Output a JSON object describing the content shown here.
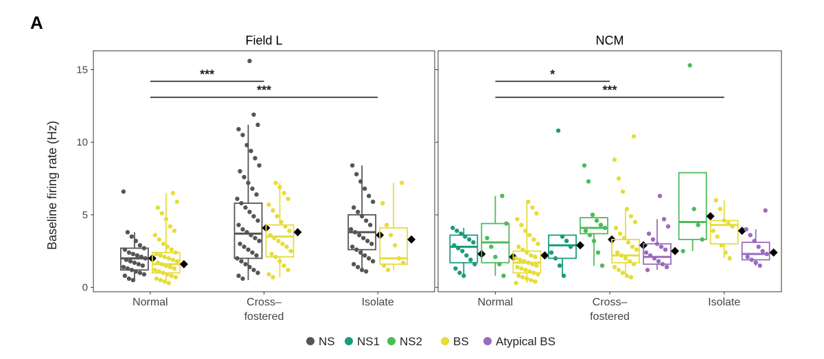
{
  "panel_letter": "A",
  "y_axis_label": "Baseline firing rate (Hz)",
  "legend": [
    {
      "label": "NS",
      "color": "#555555"
    },
    {
      "label": "NS1",
      "color": "#1a9b7b"
    },
    {
      "label": "NS2",
      "color": "#4cbb5a"
    },
    {
      "label": "BS",
      "color": "#e6dc3a"
    },
    {
      "label": "Atypical BS",
      "color": "#9b6bbf"
    }
  ],
  "chart_data": [
    {
      "type": "boxplot",
      "title": "Field L",
      "categories": [
        "Normal",
        "Cross-fostered",
        "Isolate"
      ],
      "category_labels": [
        [
          "Normal"
        ],
        [
          "Cross–",
          "fostered"
        ],
        [
          "Isolate"
        ]
      ],
      "ylim": [
        -0.3,
        16.3
      ],
      "yticks": [
        0,
        5,
        10,
        15
      ],
      "ylabel": "Baseline firing rate (Hz)",
      "boxes": [
        {
          "category": "Normal",
          "cell_type": "NS",
          "color": "#555555",
          "q1": 1.2,
          "median": 2.0,
          "q3": 2.7,
          "whisker_low": 0.5,
          "whisker_high": 3.8,
          "mean": 2.0,
          "points": [
            6.6,
            3.8,
            3.5,
            3.2,
            2.9,
            2.7,
            2.6,
            2.4,
            2.3,
            2.2,
            2.1,
            2.0,
            1.9,
            1.8,
            1.7,
            1.6,
            1.5,
            1.4,
            1.3,
            1.2,
            1.1,
            1.0,
            0.9,
            0.8,
            0.6,
            0.5
          ]
        },
        {
          "category": "Normal",
          "cell_type": "BS",
          "color": "#e6dc3a",
          "q1": 1.0,
          "median": 1.6,
          "q3": 2.4,
          "whisker_low": 0.3,
          "whisker_high": 6.5,
          "mean": 1.6,
          "points": [
            6.5,
            5.9,
            5.5,
            5.1,
            4.7,
            4.2,
            3.9,
            3.6,
            3.3,
            3.0,
            2.8,
            2.6,
            2.4,
            2.3,
            2.2,
            2.1,
            2.0,
            1.9,
            1.8,
            1.7,
            1.6,
            1.5,
            1.4,
            1.3,
            1.2,
            1.1,
            1.0,
            0.9,
            0.8,
            0.7,
            0.6,
            0.5,
            0.4,
            0.3
          ]
        },
        {
          "category": "Cross-fostered",
          "cell_type": "NS",
          "color": "#555555",
          "q1": 2.0,
          "median": 3.7,
          "q3": 5.8,
          "whisker_low": 0.5,
          "whisker_high": 11.2,
          "mean": 4.1,
          "points": [
            15.6,
            11.9,
            11.2,
            10.9,
            10.5,
            9.8,
            9.4,
            8.9,
            8.4,
            8.0,
            7.6,
            7.2,
            6.8,
            6.4,
            6.1,
            5.8,
            5.5,
            5.2,
            4.9,
            4.6,
            4.3,
            4.0,
            3.8,
            3.6,
            3.4,
            3.2,
            3.0,
            2.8,
            2.6,
            2.4,
            2.2,
            2.0,
            1.8,
            1.6,
            1.4,
            1.2,
            1.0,
            0.8,
            0.6
          ]
        },
        {
          "category": "Cross-fostered",
          "cell_type": "BS",
          "color": "#e6dc3a",
          "q1": 2.1,
          "median": 3.5,
          "q3": 4.3,
          "whisker_low": 0.7,
          "whisker_high": 7.2,
          "mean": 3.8,
          "points": [
            7.2,
            6.9,
            6.5,
            6.1,
            5.7,
            5.3,
            4.9,
            4.5,
            4.2,
            3.9,
            3.6,
            3.4,
            3.2,
            3.0,
            2.8,
            2.5,
            2.3,
            2.1,
            1.8,
            1.5,
            1.2,
            0.9,
            0.7
          ]
        },
        {
          "category": "Isolate",
          "cell_type": "NS",
          "color": "#555555",
          "q1": 2.6,
          "median": 3.8,
          "q3": 5.0,
          "whisker_low": 1.1,
          "whisker_high": 8.4,
          "mean": 3.6,
          "points": [
            8.4,
            7.8,
            7.3,
            6.8,
            6.3,
            5.9,
            5.5,
            5.2,
            4.9,
            4.6,
            4.3,
            4.0,
            3.8,
            3.6,
            3.4,
            3.2,
            3.0,
            2.8,
            2.6,
            2.4,
            2.2,
            2.0,
            1.8,
            1.6,
            1.4,
            1.2,
            1.1
          ]
        },
        {
          "category": "Isolate",
          "cell_type": "BS",
          "color": "#e6dc3a",
          "q1": 1.6,
          "median": 2.0,
          "q3": 4.1,
          "whisker_low": 1.2,
          "whisker_high": 7.2,
          "mean": 3.3,
          "points": [
            7.2,
            5.8,
            4.3,
            3.6,
            2.9,
            2.0,
            1.7,
            1.5,
            1.2
          ]
        }
      ],
      "significance": [
        {
          "label": "***",
          "from": 0,
          "to": 1,
          "y": 14.2
        },
        {
          "label": "***",
          "from": 0,
          "to": 2,
          "y": 13.1
        }
      ]
    },
    {
      "type": "boxplot",
      "title": "NCM",
      "categories": [
        "Normal",
        "Cross-fostered",
        "Isolate"
      ],
      "category_labels": [
        [
          "Normal"
        ],
        [
          "Cross–",
          "fostered"
        ],
        [
          "Isolate"
        ]
      ],
      "ylim": [
        -0.3,
        16.3
      ],
      "yticks": [
        0,
        5,
        10,
        15
      ],
      "boxes": [
        {
          "category": "Normal",
          "cell_type": "NS1",
          "color": "#1a9b7b",
          "q1": 1.7,
          "median": 2.8,
          "q3": 3.6,
          "whisker_low": 0.8,
          "whisker_high": 4.1,
          "mean": 2.3,
          "points": [
            4.1,
            3.9,
            3.7,
            3.5,
            3.3,
            3.1,
            2.9,
            2.7,
            2.5,
            2.2,
            1.9,
            1.6,
            1.3,
            1.0,
            0.8
          ]
        },
        {
          "category": "Normal",
          "cell_type": "NS2",
          "color": "#4cbb5a",
          "q1": 1.7,
          "median": 3.1,
          "q3": 4.4,
          "whisker_low": 0.8,
          "whisker_high": 6.3,
          "mean": 2.1,
          "points": [
            6.3,
            4.4,
            3.4,
            2.8,
            2.1,
            1.6,
            0.8
          ]
        },
        {
          "category": "Normal",
          "cell_type": "BS",
          "color": "#e6dc3a",
          "q1": 1.0,
          "median": 1.7,
          "q3": 2.5,
          "whisker_low": 0.3,
          "whisker_high": 5.9,
          "mean": 2.2,
          "points": [
            5.9,
            5.5,
            5.1,
            4.7,
            4.3,
            3.9,
            3.6,
            3.3,
            3.0,
            2.8,
            2.6,
            2.4,
            2.2,
            2.1,
            2.0,
            1.9,
            1.8,
            1.7,
            1.6,
            1.5,
            1.4,
            1.3,
            1.2,
            1.1,
            1.0,
            0.9,
            0.8,
            0.7,
            0.6,
            0.5,
            0.4,
            0.3
          ]
        },
        {
          "category": "Cross-fostered",
          "cell_type": "NS1",
          "color": "#1a9b7b",
          "q1": 2.0,
          "median": 2.9,
          "q3": 3.6,
          "whisker_low": 0.8,
          "whisker_high": 3.6,
          "mean": 2.9,
          "points": [
            10.8,
            3.5,
            3.2,
            2.8,
            2.4,
            2.0,
            1.5,
            0.8
          ]
        },
        {
          "category": "Cross-fostered",
          "cell_type": "NS2",
          "color": "#4cbb5a",
          "q1": 3.7,
          "median": 4.1,
          "q3": 4.8,
          "whisker_low": 1.5,
          "whisker_high": 4.8,
          "mean": 3.3,
          "points": [
            8.4,
            7.3,
            5.0,
            4.6,
            4.3,
            4.1,
            3.9,
            3.6,
            3.2,
            2.4,
            1.5
          ]
        },
        {
          "category": "Cross-fostered",
          "cell_type": "BS",
          "color": "#e6dc3a",
          "q1": 1.7,
          "median": 2.2,
          "q3": 3.3,
          "whisker_low": 0.7,
          "whisker_high": 5.4,
          "mean": 2.9,
          "points": [
            10.4,
            8.8,
            7.5,
            6.6,
            5.4,
            4.9,
            4.5,
            4.1,
            3.7,
            3.4,
            3.1,
            2.8,
            2.6,
            2.4,
            2.2,
            2.0,
            1.8,
            1.6,
            1.4,
            1.2,
            1.0,
            0.8,
            0.7
          ]
        },
        {
          "category": "Cross-fostered",
          "cell_type": "Atypical BS",
          "color": "#9b6bbf",
          "q1": 1.6,
          "median": 2.1,
          "q3": 3.0,
          "whisker_low": 1.2,
          "whisker_high": 4.7,
          "mean": 2.5,
          "points": [
            6.3,
            4.7,
            4.2,
            3.7,
            3.3,
            3.0,
            2.8,
            2.6,
            2.4,
            2.2,
            2.0,
            1.8,
            1.6,
            1.4,
            1.2
          ]
        },
        {
          "category": "Isolate",
          "cell_type": "NS2",
          "color": "#4cbb5a",
          "q1": 3.3,
          "median": 4.5,
          "q3": 7.9,
          "whisker_low": 2.5,
          "whisker_high": 7.9,
          "mean": 4.9,
          "points": [
            15.3,
            5.4,
            4.3,
            3.3,
            2.5
          ]
        },
        {
          "category": "Isolate",
          "cell_type": "BS",
          "color": "#e6dc3a",
          "q1": 3.0,
          "median": 4.3,
          "q3": 4.6,
          "whisker_low": 2.0,
          "whisker_high": 6.0,
          "mean": 3.9,
          "points": [
            6.0,
            5.4,
            4.6,
            4.4,
            4.2,
            3.9,
            3.5,
            2.9,
            2.4,
            2.0
          ]
        },
        {
          "category": "Isolate",
          "cell_type": "Atypical BS",
          "color": "#9b6bbf",
          "q1": 1.9,
          "median": 2.3,
          "q3": 3.1,
          "whisker_low": 1.5,
          "whisker_high": 4.0,
          "mean": 2.4,
          "points": [
            5.3,
            4.0,
            3.6,
            3.2,
            2.8,
            2.5,
            2.3,
            2.1,
            1.9,
            1.7,
            1.5
          ]
        }
      ],
      "significance": [
        {
          "label": "*",
          "from": 0,
          "to": 1,
          "y": 14.2
        },
        {
          "label": "***",
          "from": 0,
          "to": 2,
          "y": 13.1
        }
      ]
    }
  ]
}
